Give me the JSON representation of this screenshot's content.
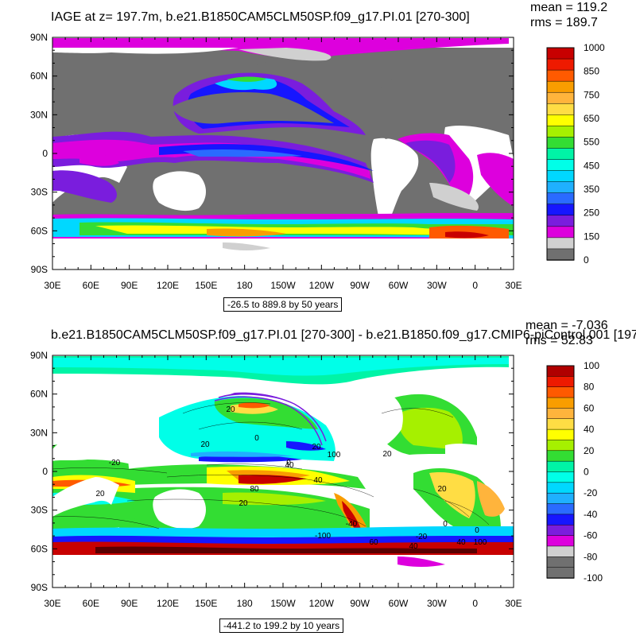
{
  "top_panel": {
    "title": "IAGE at z= 197.7m, b.e21.B1850CAM5CLM50SP.f09_g17.PI.01 [270-300]",
    "mean_text": "mean = 119.2",
    "rms_text": "rms = 189.7",
    "range_text": "-26.5 to 889.8 by 50 years",
    "colorbar": {
      "labels": [
        "1000",
        "850",
        "750",
        "650",
        "550",
        "450",
        "350",
        "250",
        "150",
        "0"
      ],
      "colors": [
        "#c80000",
        "#ee1a00",
        "#ff5a00",
        "#f99d00",
        "#ffb43c",
        "#ffdd44",
        "#ffff00",
        "#a6f000",
        "#33dd33",
        "#00f4a6",
        "#00ffe8",
        "#00d8ff",
        "#1fb0ff",
        "#2a6bff",
        "#1616ff",
        "#7a1ddd",
        "#dd00dd",
        "#d0d0d0",
        "#707070"
      ]
    }
  },
  "bottom_panel": {
    "title": "b.e21.B1850CAM5CLM50SP.f09_g17.PI.01 [270-300] - b.e21.B1850.f09_g17.CMIP6-piControl.001 [197",
    "mean_text": "mean = -7.036",
    "rms_text": "rms = 52.83",
    "range_text": "-441.2 to 199.2 by 10 years",
    "colorbar": {
      "labels": [
        "100",
        "80",
        "60",
        "40",
        "20",
        "0",
        "-20",
        "-40",
        "-60",
        "-80",
        "-100"
      ],
      "colors": [
        "#b00000",
        "#ee1a00",
        "#ff5a00",
        "#f99d00",
        "#ffb43c",
        "#ffdd44",
        "#ffff00",
        "#a6f000",
        "#33dd33",
        "#00f4a6",
        "#00ffe8",
        "#00d8ff",
        "#1fb0ff",
        "#2a6bff",
        "#1616ff",
        "#7a1ddd",
        "#dd00dd",
        "#d0d0d0",
        "#707070",
        "#707070"
      ]
    },
    "contour_labels": [
      "0",
      "20",
      "20",
      "0",
      "40",
      "100",
      "20",
      "20",
      "40",
      "80",
      "20",
      "-20",
      "20",
      "-100",
      "40",
      "-20",
      "0",
      "60",
      "40",
      "100",
      "-40",
      "0",
      "20"
    ]
  },
  "axes": {
    "lat_labels": [
      "90N",
      "60N",
      "30N",
      "0",
      "30S",
      "60S",
      "90S"
    ],
    "lon_labels": [
      "30E",
      "60E",
      "90E",
      "120E",
      "150E",
      "180",
      "150W",
      "120W",
      "90W",
      "60W",
      "30W",
      "0",
      "30E"
    ]
  },
  "colors": {
    "land": "#6e6e6e",
    "no_data": "#ffffff",
    "ice_fringe": "#cccccc"
  }
}
